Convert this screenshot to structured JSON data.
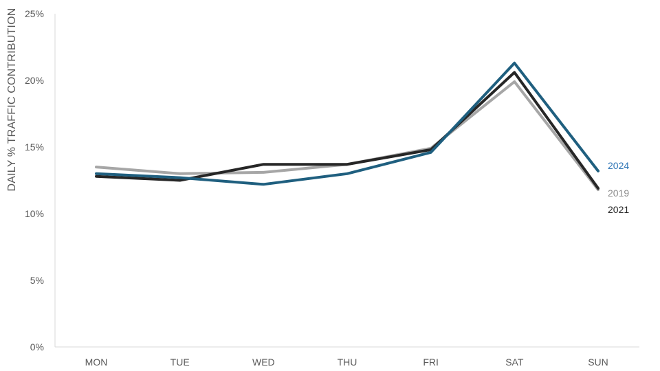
{
  "chart_data": {
    "type": "line",
    "categories": [
      "MON",
      "TUE",
      "WED",
      "THU",
      "FRI",
      "SAT",
      "SUN"
    ],
    "ylabel": "DAILY % TRAFFIC CONTRIBUTION",
    "ylim": [
      0,
      25
    ],
    "yticks": [
      0,
      5,
      10,
      15,
      20,
      25
    ],
    "ytick_labels": [
      "0%",
      "5%",
      "10%",
      "15%",
      "20%",
      "25%"
    ],
    "grid": false,
    "legend": "end-of-line labels",
    "series": [
      {
        "name": "2019",
        "color": "#a6a6a6",
        "values": [
          13.5,
          13.0,
          13.1,
          13.7,
          14.9,
          19.9,
          11.8
        ]
      },
      {
        "name": "2021",
        "color": "#262626",
        "values": [
          12.8,
          12.5,
          13.7,
          13.7,
          14.8,
          20.6,
          11.9
        ]
      },
      {
        "name": "2024",
        "color": "#1f5f7f",
        "values": [
          13.0,
          12.7,
          12.2,
          13.0,
          14.6,
          21.3,
          13.2
        ]
      }
    ],
    "label_colors": {
      "2019": "#8c8c8c",
      "2021": "#262626",
      "2024": "#2e75b6"
    }
  }
}
